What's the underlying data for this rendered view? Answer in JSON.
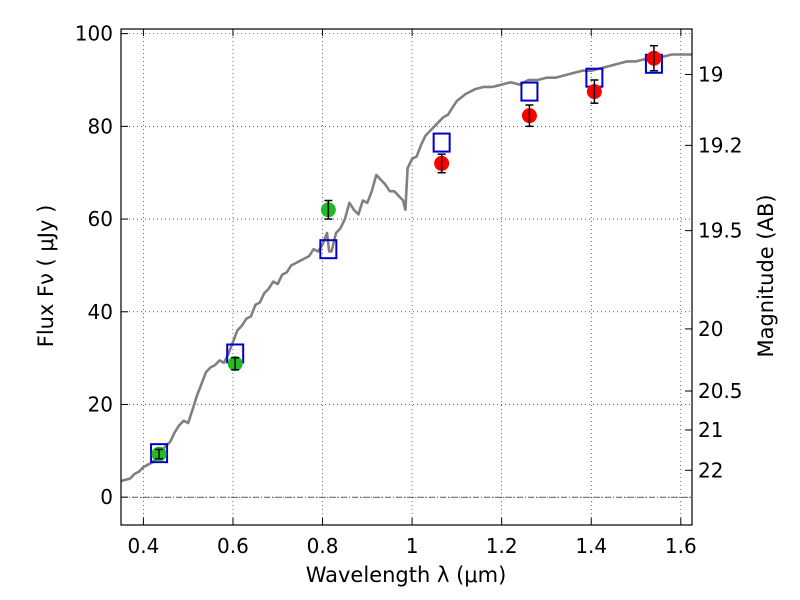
{
  "chart_data": {
    "type": "scatter",
    "title": "",
    "xlabel": "Wavelength  λ (μm)",
    "ylabel": "Flux  Fν  ( μJy )",
    "ylabel_right": "Magnitude (AB)",
    "xlim": [
      0.35,
      1.625
    ],
    "ylim": [
      -6,
      101
    ],
    "grid": true,
    "xticks": [
      0.4,
      0.6,
      0.8,
      1.0,
      1.2,
      1.4,
      1.6
    ],
    "xtick_labels": [
      "0.4",
      "0.6",
      "0.8",
      "1",
      "1.2",
      "1.4",
      "1.6"
    ],
    "yticks": [
      0,
      20,
      40,
      60,
      80,
      100
    ],
    "ytick_labels": [
      "0",
      "20",
      "40",
      "60",
      "80",
      "100"
    ],
    "right_ticks": [
      {
        "label": "19",
        "flux": 91.2
      },
      {
        "label": "19.2",
        "flux": 75.9
      },
      {
        "label": "19.5",
        "flux": 57.5
      },
      {
        "label": "20",
        "flux": 36.3
      },
      {
        "label": "20.5",
        "flux": 22.9
      },
      {
        "label": "21",
        "flux": 14.5
      },
      {
        "label": "22",
        "flux": 5.8
      }
    ],
    "colors": {
      "spectrum": "#808080",
      "model_box": "#0000cc",
      "green_points": "#22bb22",
      "red_points": "#ff0000",
      "error_bars": "#000000"
    },
    "spectrum": {
      "x": [
        0.35,
        0.37,
        0.38,
        0.39,
        0.4,
        0.41,
        0.42,
        0.43,
        0.44,
        0.45,
        0.46,
        0.47,
        0.48,
        0.49,
        0.5,
        0.51,
        0.52,
        0.53,
        0.54,
        0.55,
        0.56,
        0.57,
        0.58,
        0.59,
        0.6,
        0.61,
        0.62,
        0.63,
        0.64,
        0.65,
        0.66,
        0.67,
        0.68,
        0.69,
        0.7,
        0.71,
        0.72,
        0.73,
        0.74,
        0.75,
        0.76,
        0.77,
        0.78,
        0.79,
        0.8,
        0.81,
        0.815,
        0.82,
        0.83,
        0.84,
        0.85,
        0.86,
        0.87,
        0.88,
        0.89,
        0.9,
        0.91,
        0.92,
        0.93,
        0.94,
        0.95,
        0.96,
        0.97,
        0.98,
        0.985,
        0.99,
        1.0,
        1.01,
        1.02,
        1.03,
        1.04,
        1.05,
        1.06,
        1.07,
        1.08,
        1.09,
        1.1,
        1.12,
        1.14,
        1.16,
        1.18,
        1.2,
        1.22,
        1.24,
        1.26,
        1.28,
        1.3,
        1.32,
        1.34,
        1.36,
        1.38,
        1.4,
        1.42,
        1.44,
        1.46,
        1.48,
        1.5,
        1.52,
        1.54,
        1.56,
        1.58,
        1.6,
        1.625
      ],
      "y": [
        3.5,
        4.0,
        5.0,
        5.5,
        6.5,
        7.0,
        7.5,
        8.5,
        10.0,
        11.0,
        12.0,
        14.0,
        15.5,
        16.5,
        16.0,
        19.0,
        22.0,
        24.5,
        27.0,
        28.0,
        28.5,
        29.5,
        29.0,
        31.0,
        33.5,
        36.0,
        37.0,
        38.5,
        39.0,
        41.5,
        42.0,
        44.0,
        45.0,
        46.5,
        46.0,
        48.0,
        48.5,
        50.0,
        50.5,
        51.0,
        51.5,
        52.0,
        53.5,
        53.0,
        54.5,
        57.0,
        53.0,
        53.0,
        57.0,
        58.0,
        60.0,
        63.5,
        62.0,
        61.0,
        64.0,
        63.5,
        66.0,
        69.5,
        68.5,
        67.5,
        66.0,
        66.0,
        65.0,
        64.0,
        62.0,
        71.0,
        73.0,
        73.5,
        76.0,
        78.0,
        79.0,
        80.0,
        81.0,
        82.0,
        82.5,
        84.0,
        85.5,
        87.0,
        88.0,
        88.5,
        88.5,
        89.0,
        89.5,
        89.0,
        90.0,
        90.0,
        90.5,
        90.5,
        91.0,
        91.5,
        92.0,
        92.0,
        92.5,
        93.0,
        93.5,
        94.0,
        94.0,
        94.5,
        94.5,
        95.0,
        95.5,
        95.5,
        95.5
      ]
    },
    "model_boxes": [
      {
        "x": 0.435,
        "y": 9.5
      },
      {
        "x": 0.605,
        "y": 31.0
      },
      {
        "x": 0.813,
        "y": 53.5
      },
      {
        "x": 1.066,
        "y": 76.5
      },
      {
        "x": 1.262,
        "y": 87.5
      },
      {
        "x": 1.407,
        "y": 90.5
      },
      {
        "x": 1.54,
        "y": 93.5
      }
    ],
    "green_points": [
      {
        "x": 0.435,
        "y": 9.3,
        "err": 1.0
      },
      {
        "x": 0.605,
        "y": 28.8,
        "err": 1.3
      },
      {
        "x": 0.813,
        "y": 62.0,
        "err": 2.0
      }
    ],
    "red_points": [
      {
        "x": 1.066,
        "y": 72.0,
        "err": 2.0
      },
      {
        "x": 1.262,
        "y": 82.3,
        "err": 2.3
      },
      {
        "x": 1.407,
        "y": 87.5,
        "err": 2.5
      },
      {
        "x": 1.54,
        "y": 94.7,
        "err": 2.7
      }
    ]
  }
}
